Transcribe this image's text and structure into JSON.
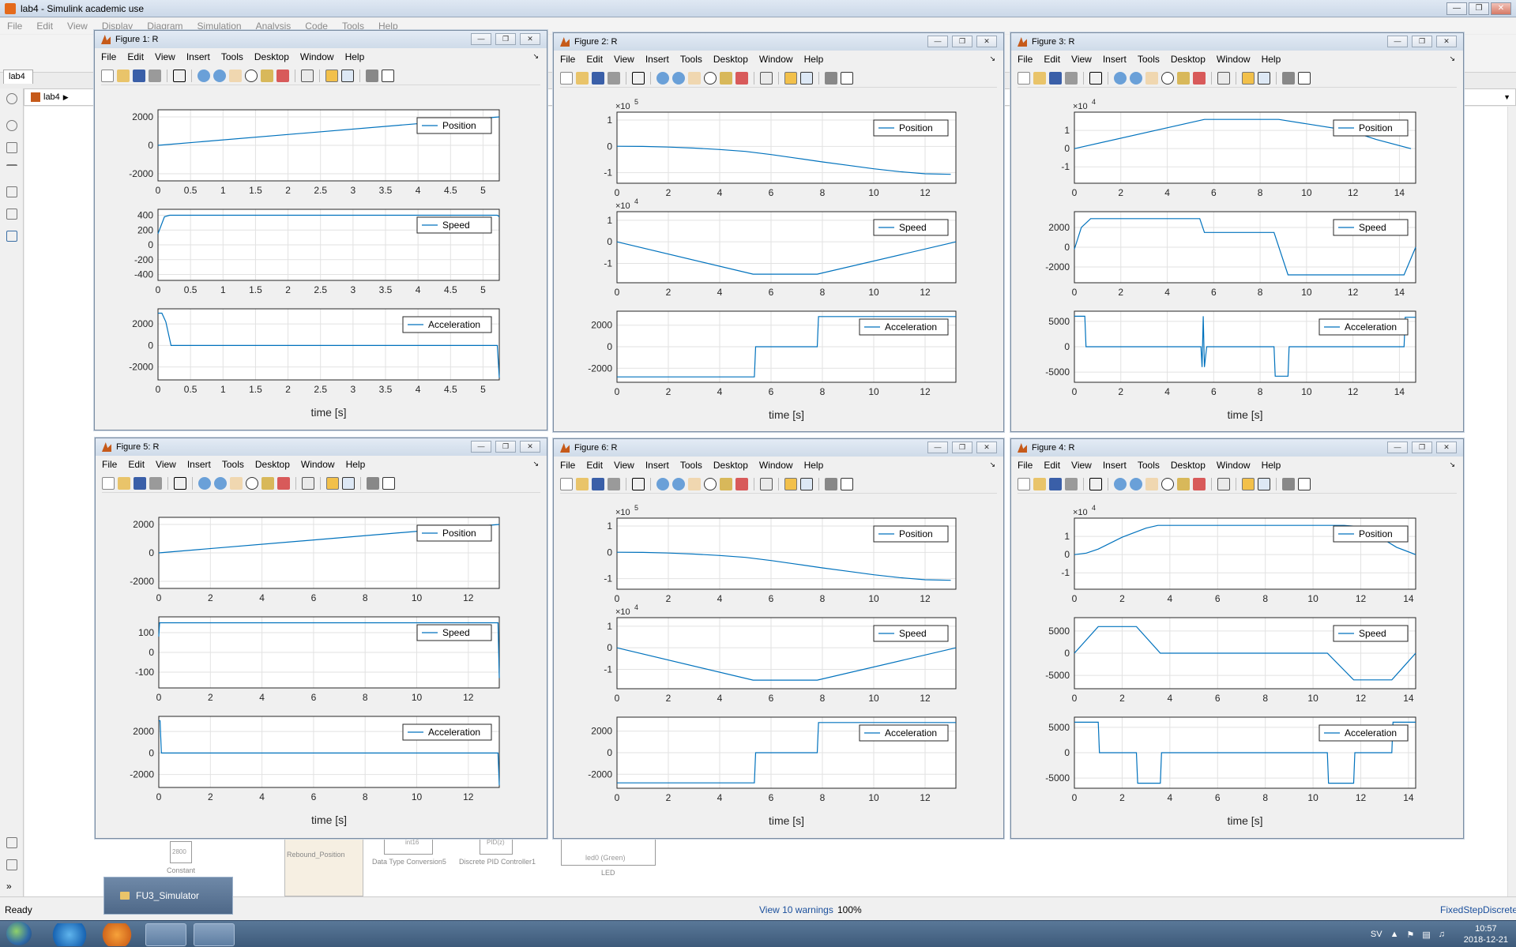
{
  "simulink": {
    "title": "lab4 - Simulink academic use",
    "menu": [
      "File",
      "Edit",
      "View",
      "Display",
      "Diagram",
      "Simulation",
      "Analysis",
      "Code",
      "Tools",
      "Help"
    ],
    "tab": "lab4",
    "breadcrumb": "lab4",
    "status_left": "Ready",
    "status_warnings": "View 10 warnings",
    "status_zoom": "100%",
    "status_solver": "FixedStepDiscrete",
    "blocks": {
      "constant_label": "Constant",
      "constant_value": "2800",
      "rebound_label": "Rebound_Position",
      "dtc_label": "Data Type Conversion5",
      "dtc_text": "int16",
      "pid_label": "Discrete PID Controller1",
      "pid_text": "PID(z)",
      "led_label": "LED",
      "led_text": "led0 (Green)"
    }
  },
  "taskbar": {
    "popup_label": "FU3_Simulator",
    "lang": "SV",
    "time": "10:57",
    "date": "2018-12-21"
  },
  "figure_menu": [
    "File",
    "Edit",
    "View",
    "Insert",
    "Tools",
    "Desktop",
    "Window",
    "Help"
  ],
  "xlabel": "time [s]",
  "legend_names": [
    "Position",
    "Speed",
    "Acceleration"
  ],
  "line_color": "#0072bd",
  "figures": [
    {
      "title": "Figure 1: R",
      "chart_data": [
        {
          "type": "line",
          "legend": "Position",
          "x": [
            0,
            5.25
          ],
          "y": [
            0,
            2000
          ],
          "xlim": [
            0,
            5.25
          ],
          "ylim": [
            -2500,
            2500
          ],
          "xticks": [
            "0",
            "0.5",
            "1",
            "1.5",
            "2",
            "2.5",
            "3",
            "3.5",
            "4",
            "4.5",
            "5"
          ],
          "yticks": [
            {
              "v": 2000,
              "t": "2000"
            },
            {
              "v": 0,
              "t": "0"
            },
            {
              "v": -2000,
              "t": "-2000"
            }
          ],
          "exponent": ""
        },
        {
          "type": "line",
          "legend": "Speed",
          "x": [
            0,
            0.1,
            0.18,
            5.22,
            5.25
          ],
          "y": [
            150,
            380,
            400,
            400,
            380
          ],
          "xlim": [
            0,
            5.25
          ],
          "ylim": [
            -480,
            480
          ],
          "xticks": [
            "0",
            "0.5",
            "1",
            "1.5",
            "2",
            "2.5",
            "3",
            "3.5",
            "4",
            "4.5",
            "5"
          ],
          "yticks": [
            {
              "v": 400,
              "t": "400"
            },
            {
              "v": 200,
              "t": "200"
            },
            {
              "v": 0,
              "t": "0"
            },
            {
              "v": -200,
              "t": "-200"
            },
            {
              "v": -400,
              "t": "-400"
            }
          ],
          "exponent": ""
        },
        {
          "type": "line",
          "legend": "Acceleration",
          "x": [
            0,
            0.06,
            0.12,
            0.2,
            5.22,
            5.25
          ],
          "y": [
            3000,
            3000,
            2200,
            0,
            0,
            -3000
          ],
          "xlim": [
            0,
            5.25
          ],
          "ylim": [
            -3200,
            3400
          ],
          "xticks": [
            "0",
            "0.5",
            "1",
            "1.5",
            "2",
            "2.5",
            "3",
            "3.5",
            "4",
            "4.5",
            "5"
          ],
          "yticks": [
            {
              "v": 2000,
              "t": "2000"
            },
            {
              "v": 0,
              "t": "0"
            },
            {
              "v": -2000,
              "t": "-2000"
            }
          ],
          "exponent": ""
        }
      ]
    },
    {
      "title": "Figure 2: R",
      "chart_data": [
        {
          "type": "line",
          "legend": "Position",
          "x": [
            0,
            1,
            2,
            3,
            4,
            5,
            6,
            7,
            8,
            9,
            10,
            11,
            12,
            13
          ],
          "y": [
            0.5,
            -0.3,
            -2.5,
            -6.5,
            -12,
            -19,
            -31,
            -45,
            -59,
            -72,
            -85,
            -96,
            -104,
            -106
          ],
          "scale": "x 1e3",
          "xlim": [
            0,
            13.2
          ],
          "ylim": [
            -140,
            130
          ],
          "xticks": [
            "0",
            "2",
            "4",
            "6",
            "8",
            "10",
            "12"
          ],
          "yticks": [
            {
              "v": 100,
              "t": "1"
            },
            {
              "v": 0,
              "t": "0"
            },
            {
              "v": -100,
              "t": "-1"
            }
          ],
          "exponent": "5"
        },
        {
          "type": "line",
          "legend": "Speed",
          "x": [
            0,
            5.3,
            7.8,
            13.2
          ],
          "y": [
            0,
            -15000,
            -15000,
            0
          ],
          "xlim": [
            0,
            13.2
          ],
          "ylim": [
            -19000,
            14000
          ],
          "xticks": [
            "0",
            "2",
            "4",
            "6",
            "8",
            "10",
            "12"
          ],
          "yticks": [
            {
              "v": 10000,
              "t": "1"
            },
            {
              "v": 0,
              "t": "0"
            },
            {
              "v": -10000,
              "t": "-1"
            }
          ],
          "exponent": "4"
        },
        {
          "type": "line",
          "legend": "Acceleration",
          "x": [
            0,
            5.35,
            5.4,
            7.8,
            7.85,
            13.2
          ],
          "y": [
            -2800,
            -2800,
            0,
            0,
            2800,
            2800
          ],
          "xlim": [
            0,
            13.2
          ],
          "ylim": [
            -3300,
            3300
          ],
          "xticks": [
            "0",
            "2",
            "4",
            "6",
            "8",
            "10",
            "12"
          ],
          "yticks": [
            {
              "v": 2000,
              "t": "2000"
            },
            {
              "v": 0,
              "t": "0"
            },
            {
              "v": -2000,
              "t": "-2000"
            }
          ],
          "exponent": ""
        }
      ]
    },
    {
      "title": "Figure 3: R",
      "chart_data": [
        {
          "type": "line",
          "legend": "Position",
          "x": [
            0,
            5.6,
            8.8,
            11.8,
            13,
            14.5
          ],
          "y": [
            0,
            16000,
            16000,
            10000,
            5000,
            0
          ],
          "xlim": [
            0,
            14.7
          ],
          "ylim": [
            -19000,
            20000
          ],
          "xticks": [
            "0",
            "2",
            "4",
            "6",
            "8",
            "10",
            "12",
            "14"
          ],
          "yticks": [
            {
              "v": 10000,
              "t": "1"
            },
            {
              "v": 0,
              "t": "0"
            },
            {
              "v": -10000,
              "t": "-1"
            }
          ],
          "exponent": "4"
        },
        {
          "type": "line",
          "legend": "Speed",
          "x": [
            0,
            0.3,
            0.7,
            5.4,
            5.6,
            8.6,
            9.2,
            14.2,
            14.7
          ],
          "y": [
            -200,
            2000,
            2900,
            2900,
            1500,
            1500,
            -2800,
            -2800,
            0
          ],
          "xlim": [
            0,
            14.7
          ],
          "ylim": [
            -3600,
            3600
          ],
          "xticks": [
            "0",
            "2",
            "4",
            "6",
            "8",
            "10",
            "12",
            "14"
          ],
          "yticks": [
            {
              "v": 2000,
              "t": "2000"
            },
            {
              "v": 0,
              "t": "0"
            },
            {
              "v": -2000,
              "t": "-2000"
            }
          ],
          "exponent": ""
        },
        {
          "type": "line",
          "legend": "Acceleration",
          "x": [
            0,
            0.45,
            0.5,
            5.45,
            5.5,
            5.55,
            5.6,
            5.7,
            8.6,
            8.65,
            9.2,
            9.25,
            14.2,
            14.25,
            14.7
          ],
          "y": [
            6000,
            6000,
            0,
            0,
            -4000,
            6000,
            -4000,
            0,
            0,
            -5800,
            -5800,
            0,
            0,
            5800,
            5800
          ],
          "xlim": [
            0,
            14.7
          ],
          "ylim": [
            -7000,
            7000
          ],
          "xticks": [
            "0",
            "2",
            "4",
            "6",
            "8",
            "10",
            "12",
            "14"
          ],
          "yticks": [
            {
              "v": 5000,
              "t": "5000"
            },
            {
              "v": 0,
              "t": "0"
            },
            {
              "v": -5000,
              "t": "-5000"
            }
          ],
          "exponent": ""
        }
      ]
    },
    {
      "title": "Figure 5: R",
      "chart_data": [
        {
          "type": "line",
          "legend": "Position",
          "x": [
            0,
            13.2
          ],
          "y": [
            0,
            2000
          ],
          "xlim": [
            0,
            13.2
          ],
          "ylim": [
            -2500,
            2500
          ],
          "xticks": [
            "0",
            "2",
            "4",
            "6",
            "8",
            "10",
            "12"
          ],
          "yticks": [
            {
              "v": 2000,
              "t": "2000"
            },
            {
              "v": 0,
              "t": "0"
            },
            {
              "v": -2000,
              "t": "-2000"
            }
          ],
          "exponent": ""
        },
        {
          "type": "line",
          "legend": "Speed",
          "x": [
            0,
            0.03,
            13.15,
            13.2
          ],
          "y": [
            80,
            150,
            150,
            -130
          ],
          "xlim": [
            0,
            13.2
          ],
          "ylim": [
            -180,
            180
          ],
          "xticks": [
            "0",
            "2",
            "4",
            "6",
            "8",
            "10",
            "12"
          ],
          "yticks": [
            {
              "v": 100,
              "t": "100"
            },
            {
              "v": 0,
              "t": "0"
            },
            {
              "v": -100,
              "t": "-100"
            }
          ],
          "exponent": ""
        },
        {
          "type": "line",
          "legend": "Acceleration",
          "x": [
            0,
            0.05,
            0.1,
            13.15,
            13.2
          ],
          "y": [
            3000,
            3000,
            0,
            0,
            -3000
          ],
          "xlim": [
            0,
            13.2
          ],
          "ylim": [
            -3200,
            3400
          ],
          "xticks": [
            "0",
            "2",
            "4",
            "6",
            "8",
            "10",
            "12"
          ],
          "yticks": [
            {
              "v": 2000,
              "t": "2000"
            },
            {
              "v": 0,
              "t": "0"
            },
            {
              "v": -2000,
              "t": "-2000"
            }
          ],
          "exponent": ""
        }
      ]
    },
    {
      "title": "Figure 6: R",
      "chart_data": [
        {
          "type": "line",
          "legend": "Position",
          "x": [
            0,
            1,
            2,
            3,
            4,
            5,
            6,
            7,
            8,
            9,
            10,
            11,
            12,
            13
          ],
          "y": [
            0.5,
            -0.3,
            -2.5,
            -6.5,
            -12,
            -19,
            -31,
            -45,
            -59,
            -72,
            -85,
            -96,
            -104,
            -106
          ],
          "scale": "x 1e3",
          "xlim": [
            0,
            13.2
          ],
          "ylim": [
            -140,
            130
          ],
          "xticks": [
            "0",
            "2",
            "4",
            "6",
            "8",
            "10",
            "12"
          ],
          "yticks": [
            {
              "v": 100,
              "t": "1"
            },
            {
              "v": 0,
              "t": "0"
            },
            {
              "v": -100,
              "t": "-1"
            }
          ],
          "exponent": "5"
        },
        {
          "type": "line",
          "legend": "Speed",
          "x": [
            0,
            5.3,
            7.8,
            13.2
          ],
          "y": [
            0,
            -15000,
            -15000,
            0
          ],
          "xlim": [
            0,
            13.2
          ],
          "ylim": [
            -19000,
            14000
          ],
          "xticks": [
            "0",
            "2",
            "4",
            "6",
            "8",
            "10",
            "12"
          ],
          "yticks": [
            {
              "v": 10000,
              "t": "1"
            },
            {
              "v": 0,
              "t": "0"
            },
            {
              "v": -10000,
              "t": "-1"
            }
          ],
          "exponent": "4"
        },
        {
          "type": "line",
          "legend": "Acceleration",
          "x": [
            0,
            5.35,
            5.4,
            7.8,
            7.85,
            13.2
          ],
          "y": [
            -2800,
            -2800,
            0,
            0,
            2800,
            2800
          ],
          "xlim": [
            0,
            13.2
          ],
          "ylim": [
            -3300,
            3300
          ],
          "xticks": [
            "0",
            "2",
            "4",
            "6",
            "8",
            "10",
            "12"
          ],
          "yticks": [
            {
              "v": 2000,
              "t": "2000"
            },
            {
              "v": 0,
              "t": "0"
            },
            {
              "v": -2000,
              "t": "-2000"
            }
          ],
          "exponent": ""
        }
      ]
    },
    {
      "title": "Figure 4: R",
      "chart_data": [
        {
          "type": "line",
          "legend": "Position",
          "x": [
            0,
            0.5,
            1,
            2,
            3,
            3.5,
            11.3,
            11.8,
            12.5,
            13.5,
            14.3
          ],
          "y": [
            0,
            800,
            3000,
            9500,
            14500,
            16000,
            16000,
            15500,
            12000,
            4000,
            0
          ],
          "xlim": [
            0,
            14.3
          ],
          "ylim": [
            -19000,
            20000
          ],
          "xticks": [
            "0",
            "2",
            "4",
            "6",
            "8",
            "10",
            "12",
            "14"
          ],
          "yticks": [
            {
              "v": 10000,
              "t": "1"
            },
            {
              "v": 0,
              "t": "0"
            },
            {
              "v": -10000,
              "t": "-1"
            }
          ],
          "exponent": "4"
        },
        {
          "type": "line",
          "legend": "Speed",
          "x": [
            0,
            1,
            2.6,
            3.6,
            10.6,
            11.7,
            13.3,
            14.3
          ],
          "y": [
            0,
            6000,
            6000,
            0,
            0,
            -6000,
            -6000,
            0
          ],
          "xlim": [
            0,
            14.3
          ],
          "ylim": [
            -8000,
            8000
          ],
          "xticks": [
            "0",
            "2",
            "4",
            "6",
            "8",
            "10",
            "12",
            "14"
          ],
          "yticks": [
            {
              "v": 5000,
              "t": "5000"
            },
            {
              "v": 0,
              "t": "0"
            },
            {
              "v": -5000,
              "t": "-5000"
            }
          ],
          "exponent": ""
        },
        {
          "type": "line",
          "legend": "Acceleration",
          "x": [
            0,
            1,
            1.05,
            2.6,
            2.65,
            3.6,
            3.65,
            10.6,
            10.65,
            11.7,
            11.75,
            13.3,
            13.35,
            14.3
          ],
          "y": [
            6000,
            6000,
            0,
            0,
            -6000,
            -6000,
            0,
            0,
            -6000,
            -6000,
            0,
            0,
            6000,
            6000
          ],
          "xlim": [
            0,
            14.3
          ],
          "ylim": [
            -7000,
            7000
          ],
          "xticks": [
            "0",
            "2",
            "4",
            "6",
            "8",
            "10",
            "12",
            "14"
          ],
          "yticks": [
            {
              "v": 5000,
              "t": "5000"
            },
            {
              "v": 0,
              "t": "0"
            },
            {
              "v": -5000,
              "t": "-5000"
            }
          ],
          "exponent": ""
        }
      ]
    }
  ]
}
